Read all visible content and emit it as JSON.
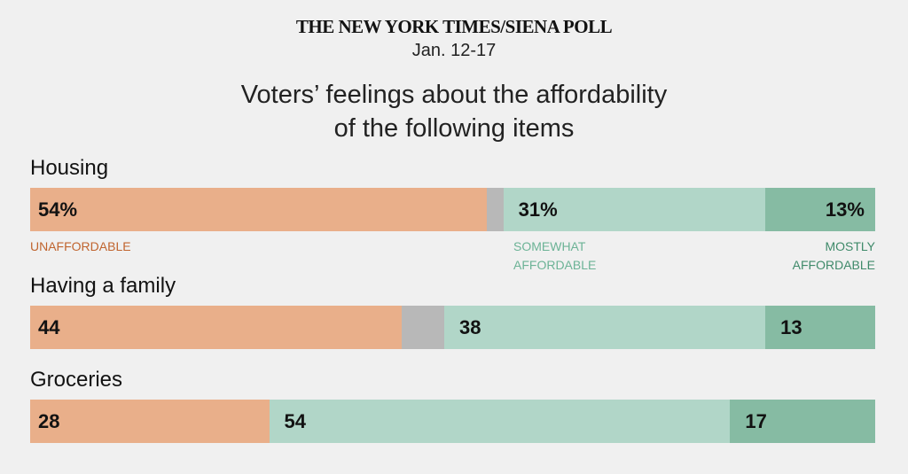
{
  "header": {
    "source": "THE NEW YORK TIMES/SIENA POLL",
    "date": "Jan. 12-17"
  },
  "chart_data": {
    "type": "bar",
    "orientation": "horizontal-stacked",
    "title_lines": [
      "Voters’ feelings about the affordability",
      "of the following items"
    ],
    "categories": [
      "Housing",
      "Having a family",
      "Groceries"
    ],
    "series": [
      {
        "name": "UNAFFORDABLE",
        "legend_lines": [
          "UNAFFORDABLE"
        ],
        "values": [
          54,
          44,
          28
        ],
        "labels": [
          "54%",
          "44",
          "28"
        ],
        "color": "#e9af8a",
        "legend_color": "#c0642e"
      },
      {
        "name": "SOMEWHAT AFFORDABLE",
        "legend_lines": [
          "SOMEWHAT",
          "AFFORDABLE"
        ],
        "values": [
          31,
          38,
          54
        ],
        "labels": [
          "31%",
          "38",
          "54"
        ],
        "color": "#b1d6c8",
        "legend_color": "#6cb396"
      },
      {
        "name": "MOSTLY AFFORDABLE",
        "legend_lines": [
          "MOSTLY",
          "AFFORDABLE"
        ],
        "values": [
          13,
          13,
          17
        ],
        "labels": [
          "13%",
          "13",
          "17"
        ],
        "color": "#86bba3",
        "legend_color": "#3f8a6a"
      }
    ],
    "remainder_color": "#b8b8b8",
    "xlim": [
      0,
      100
    ]
  }
}
